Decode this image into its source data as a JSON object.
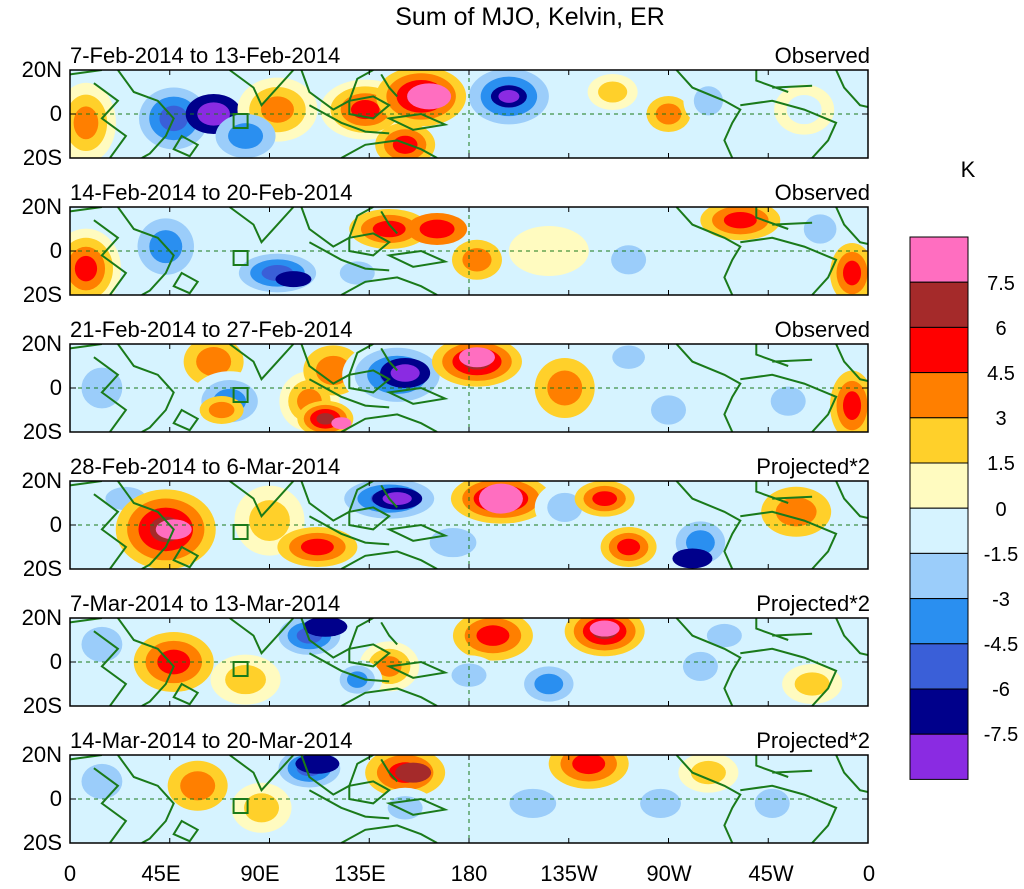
{
  "title": "Sum of MJO, Kelvin, ER",
  "panels": [
    {
      "date": "7-Feb-2014 to 13-Feb-2014",
      "tag": "Observed"
    },
    {
      "date": "14-Feb-2014 to 20-Feb-2014",
      "tag": "Observed"
    },
    {
      "date": "21-Feb-2014 to 27-Feb-2014",
      "tag": "Observed"
    },
    {
      "date": "28-Feb-2014 to 6-Mar-2014",
      "tag": "Projected*2"
    },
    {
      "date": "7-Mar-2014 to 13-Mar-2014",
      "tag": "Projected*2"
    },
    {
      "date": "14-Mar-2014 to 20-Mar-2014",
      "tag": "Projected*2"
    }
  ],
  "lat_labels": [
    "20N",
    "0",
    "20S"
  ],
  "lon_labels": [
    "0",
    "45E",
    "90E",
    "135E",
    "180",
    "135W",
    "90W",
    "45W",
    "0"
  ],
  "colorbar": {
    "unit": "K",
    "labels": [
      "7.5",
      "6",
      "4.5",
      "3",
      "1.5",
      "0",
      "-1.5",
      "-3",
      "-4.5",
      "-6",
      "-7.5"
    ],
    "colors": [
      "#ff6ec0",
      "#a52a2a",
      "#ff0000",
      "#ff7f00",
      "#ffd02a",
      "#fffbc0",
      "#d6f3ff",
      "#9bcdfa",
      "#2a8ff0",
      "#3a5fd8",
      "#00008b",
      "#8a2be2"
    ]
  },
  "colors": {
    "coastline": "#1a7a1a",
    "frame": "#000000"
  }
}
